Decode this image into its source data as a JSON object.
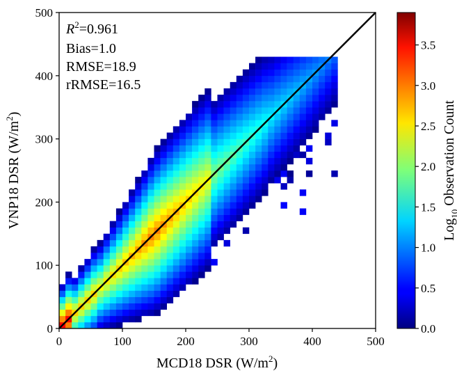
{
  "chart_data": {
    "type": "heatmap",
    "xlabel_main": "MCD18 DSR (W/m",
    "xlabel_sup": "2",
    "xlabel_end": ")",
    "ylabel_main": "VNP18 DSR (W/m",
    "ylabel_sup": "2",
    "ylabel_end": ")",
    "xlim": [
      0,
      500
    ],
    "ylim": [
      0,
      500
    ],
    "xticks": [
      "0",
      "100",
      "200",
      "300",
      "400",
      "500"
    ],
    "yticks": [
      "0",
      "100",
      "200",
      "300",
      "400",
      "500"
    ],
    "grid": false,
    "bin_width": 10,
    "stats": {
      "r2_symbol": "R",
      "r2_sup": "2",
      "r2_value": "=0.961",
      "bias": "Bias=1.0",
      "rmse": "RMSE=18.9",
      "rrmse": "rRMSE=16.5"
    },
    "reference_line": {
      "x": [
        0,
        500
      ],
      "y": [
        0,
        500
      ],
      "color": "#000000"
    },
    "colorbar": {
      "label_main": "Log",
      "label_sub": "10",
      "label_end": " Observation Count",
      "range": [
        0,
        3.9
      ],
      "ticks": [
        "0.0",
        "0.5",
        "1.0",
        "1.5",
        "2.0",
        "2.5",
        "3.0",
        "3.5"
      ],
      "colormap": "jet"
    }
  }
}
